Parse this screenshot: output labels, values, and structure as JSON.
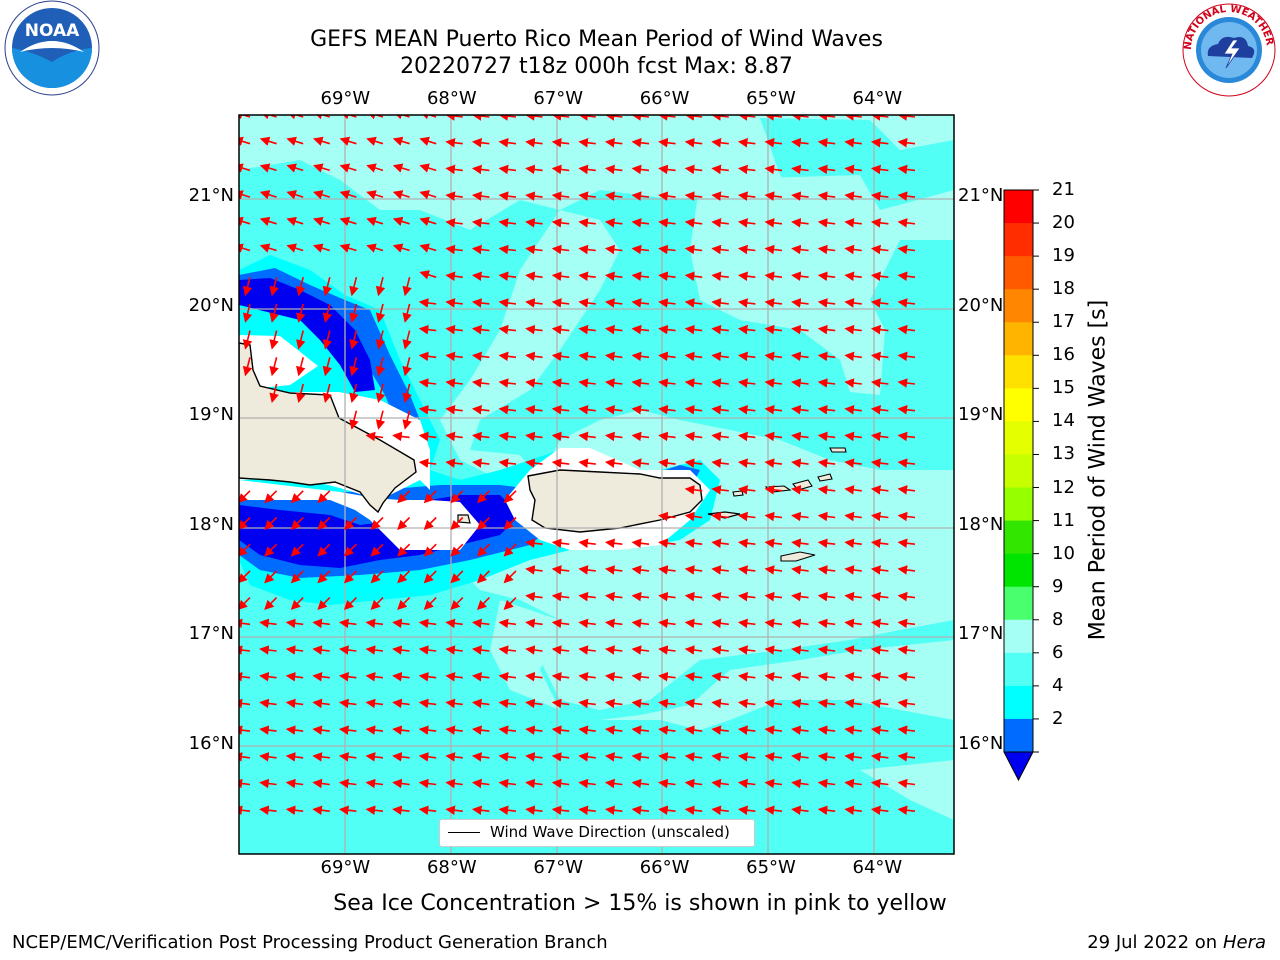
{
  "title": {
    "line1": "GEFS MEAN Puerto Rico Mean Period of Wind Waves",
    "line2": "20220727 t18z 000h fcst   Max: 8.87"
  },
  "logos": {
    "left": {
      "icon": "noaa-logo",
      "text": "NOAA",
      "ring_text": "NATIONAL OCEANIC AND ATMOSPHERIC ADMINISTRATION · U.S. DEPARTMENT OF COMMERCE"
    },
    "right": {
      "icon": "nws-logo",
      "ring_text": "NATIONAL WEATHER SERVICE"
    }
  },
  "map": {
    "lon_labels": [
      "69°W",
      "68°W",
      "67°W",
      "66°W",
      "65°W",
      "64°W"
    ],
    "lat_labels": [
      "21°N",
      "20°N",
      "19°N",
      "18°N",
      "17°N",
      "16°N"
    ],
    "lon_range": [
      -70.0,
      -63.28
    ],
    "lat_range": [
      15.0,
      21.75
    ],
    "gridlines": true,
    "land_color": "#eeeadc",
    "max_value": 8.87,
    "legend": "Wind Wave Direction (unscaled)",
    "arrow_color": "#ff0000",
    "arrow_icon": "wind-direction-arrow"
  },
  "colorbar": {
    "label": "Mean Period of Wind Waves [s]",
    "ticks": [
      "21",
      "20",
      "19",
      "18",
      "17",
      "16",
      "15",
      "14",
      "13",
      "12",
      "11",
      "10",
      "9",
      "8",
      "6",
      "4",
      "2"
    ],
    "colors": [
      "#ff0000",
      "#ff2d00",
      "#ff5a00",
      "#ff8600",
      "#ffb400",
      "#ffe100",
      "#ffff00",
      "#e4ff00",
      "#c8ff00",
      "#96ff00",
      "#32e600",
      "#00e500",
      "#4aff6e",
      "#a6fff5",
      "#52fff5",
      "#00ffff",
      "#006cff"
    ],
    "under_color": "#0000f0"
  },
  "footer": {
    "note": "Sea Ice Concentration > 15% is shown in pink to yellow",
    "left": "NCEP/EMC/Verification Post Processing Product Generation Branch",
    "right_prefix": "29 Jul 2022 on ",
    "right_host": "Hera"
  }
}
